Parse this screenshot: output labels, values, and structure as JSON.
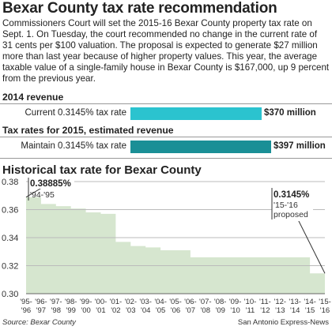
{
  "title": "Bexar County tax rate recommendation",
  "intro": "Commissioners Court will set the 2015-16 Bexar County property tax rate on Sept. 1. On Tuesday, the court recommended no change in the current rate of 31 cents per $100 valuation. The proposal is expected to generate $27 million more than last year because of higher property values. This year, the average taxable value of a single-family house in Bexar County is $167,000, up 9 percent from the previous year.",
  "revenue_2014": {
    "heading": "2014 revenue",
    "label": "Current 0.3145% tax rate",
    "value_label": "$370 million",
    "value": 370,
    "color": "#2bc3cf"
  },
  "revenue_2015": {
    "heading": "Tax rates for 2015, estimated revenue",
    "label": "Maintain 0.3145% tax rate",
    "value_label": "$397 million",
    "value": 397,
    "color": "#1a8f96"
  },
  "source": "Source: Bexar County",
  "credit": "San Antonio Express-News",
  "chart_data": {
    "type": "area",
    "title": "Historical tax rate for Bexar County",
    "fill_color": "#d6e6cf",
    "x": [
      "'95-'96",
      "'96-'97",
      "'97-'98",
      "'98-'99",
      "'99-'00",
      "'00-'01",
      "'01-'02",
      "'02-'03",
      "'03-'04",
      "'04-'05",
      "'05-'06",
      "'06-'07",
      "'07-'08",
      "'08-'09",
      "'09-'10",
      "'10-'11",
      "'11-'12",
      "'12-'13",
      "'13-'14",
      "'14-'15",
      "'15-'16"
    ],
    "values": [
      0.3689,
      0.364,
      0.3625,
      0.3608,
      0.358,
      0.357,
      0.337,
      0.334,
      0.333,
      0.331,
      0.331,
      0.326,
      0.326,
      0.326,
      0.326,
      0.326,
      0.326,
      0.326,
      0.326,
      0.3145,
      0.3145
    ],
    "ylim": [
      0.3,
      0.38
    ],
    "yticks": [
      "0.38",
      "0.36",
      "0.34",
      "0.32",
      "0.30"
    ],
    "grid": true,
    "annotations": [
      {
        "value": "0.38885%",
        "period": "'94-'95",
        "note": ""
      },
      {
        "value": "0.3145%",
        "period": "'15-'16",
        "note": "proposed"
      }
    ]
  }
}
